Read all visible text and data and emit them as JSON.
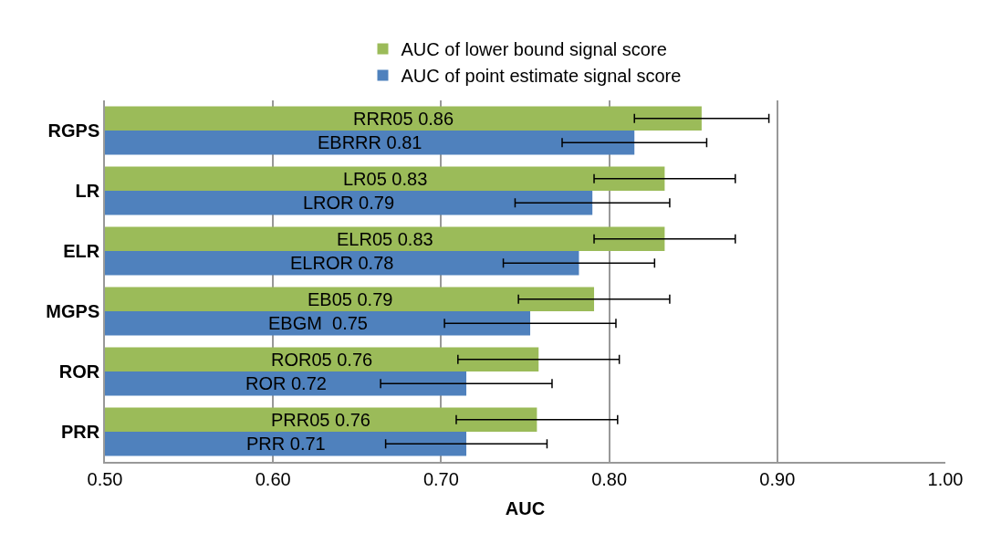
{
  "chart_data": {
    "type": "bar",
    "orientation": "horizontal",
    "xlabel": "AUC",
    "categories": [
      "RGPS",
      "LR",
      "ELR",
      "MGPS",
      "ROR",
      "PRR"
    ],
    "series": [
      {
        "name": "AUC of lower bound signal score",
        "color": "#9bbb59",
        "values": [
          0.855,
          0.833,
          0.833,
          0.791,
          0.758,
          0.757
        ],
        "errors": [
          0.04,
          0.042,
          0.042,
          0.045,
          0.048,
          0.048
        ],
        "value_labels": [
          "RRR05 0.86",
          "LR05 0.83",
          "ELR05 0.83",
          "EB05 0.79",
          "ROR05 0.76",
          "PRR05 0.76"
        ]
      },
      {
        "name": "AUC of point estimate signal score",
        "color": "#4f81bd",
        "values": [
          0.815,
          0.79,
          0.782,
          0.753,
          0.715,
          0.715
        ],
        "errors": [
          0.043,
          0.046,
          0.045,
          0.051,
          0.051,
          0.048
        ],
        "value_labels": [
          "EBRRR 0.81",
          "LROR 0.79",
          "ELROR 0.78",
          "EBGM  0.75",
          "ROR 0.72",
          "PRR 0.71"
        ]
      }
    ],
    "xlim": [
      0.5,
      1.0
    ],
    "xticks": [
      {
        "value": 0.5,
        "label": "0.50"
      },
      {
        "value": 0.6,
        "label": "0.60"
      },
      {
        "value": 0.7,
        "label": "0.70"
      },
      {
        "value": 0.8,
        "label": "0.80"
      },
      {
        "value": 0.9,
        "label": "0.90"
      },
      {
        "value": 1.0,
        "label": "1.00"
      }
    ],
    "grid": "x",
    "legend": "top"
  }
}
